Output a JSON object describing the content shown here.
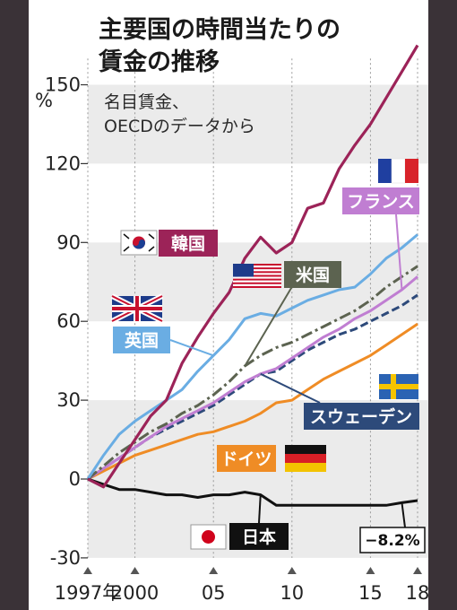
{
  "chart_data": {
    "type": "line",
    "title": [
      "主要国の時間当たりの",
      "賃金の推移"
    ],
    "subtitle": [
      "名目賃金、",
      "OECDのデータから"
    ],
    "y_unit": "%",
    "ylim": [
      -30,
      160
    ],
    "yticks": [
      -30,
      0,
      30,
      60,
      90,
      120,
      150
    ],
    "x": [
      1997,
      1998,
      1999,
      2000,
      2001,
      2002,
      2003,
      2004,
      2005,
      2006,
      2007,
      2008,
      2009,
      2010,
      2011,
      2012,
      2013,
      2014,
      2015,
      2016,
      2017,
      2018
    ],
    "xtick_values": [
      1997,
      2000,
      2005,
      2010,
      2015,
      2018
    ],
    "xtick_labels": [
      "1997年",
      "2000",
      "05",
      "10",
      "15",
      "18"
    ],
    "grid": "vertical dotted lines at labeled years; alternating horizontal bands",
    "series": [
      {
        "name": "韓国",
        "color": "#9c2358",
        "dash": "",
        "flag": "south-korea-flag",
        "values": [
          0,
          -3,
          6,
          15,
          24,
          30,
          44,
          54,
          63,
          71,
          84,
          92,
          86,
          90,
          103,
          105,
          118,
          127,
          135,
          145,
          155,
          165
        ]
      },
      {
        "name": "英国",
        "color": "#6aade3",
        "dash": "",
        "flag": "uk-flag",
        "values": [
          0,
          9,
          17,
          22,
          26,
          30,
          34,
          41,
          47,
          53,
          61,
          63,
          62,
          65,
          68,
          70,
          72,
          73,
          78,
          84,
          88,
          93
        ]
      },
      {
        "name": "米国",
        "color": "#5c6350",
        "dash": "13 4 3 4",
        "flag": "us-flag",
        "values": [
          0,
          5,
          10,
          14,
          18,
          21,
          25,
          28,
          32,
          37,
          43,
          47,
          50,
          52,
          55,
          58,
          61,
          64,
          68,
          73,
          77,
          81
        ]
      },
      {
        "name": "フランス",
        "color": "#c07ed2",
        "dash": "",
        "flag": "france-flag",
        "values": [
          0,
          4,
          8,
          12,
          16,
          20,
          23,
          26,
          29,
          33,
          37,
          40,
          42,
          46,
          50,
          54,
          57,
          61,
          64,
          68,
          72,
          77
        ]
      },
      {
        "name": "スウェーデン",
        "color": "#2d4a7a",
        "dash": "9 4",
        "flag": "sweden-flag",
        "values": [
          0,
          4,
          8,
          12,
          16,
          19,
          22,
          25,
          28,
          32,
          36,
          40,
          41,
          45,
          49,
          52,
          55,
          57,
          60,
          63,
          66,
          70
        ]
      },
      {
        "name": "ドイツ",
        "color": "#ef8c25",
        "dash": "",
        "flag": "germany-flag",
        "values": [
          0,
          3,
          6,
          9,
          11,
          13,
          15,
          17,
          18,
          20,
          22,
          25,
          29,
          30,
          34,
          38,
          41,
          44,
          47,
          51,
          55,
          59
        ]
      },
      {
        "name": "日本",
        "color": "#111111",
        "dash": "",
        "flag": "japan-flag",
        "values": [
          0,
          -2,
          -4,
          -4,
          -5,
          -6,
          -6,
          -7,
          -6,
          -6,
          -5,
          -6,
          -10,
          -10,
          -10,
          -10,
          -10,
          -10,
          -10,
          -10,
          -9,
          -8.2
        ]
      }
    ],
    "end_annotation": "−8.2%"
  }
}
